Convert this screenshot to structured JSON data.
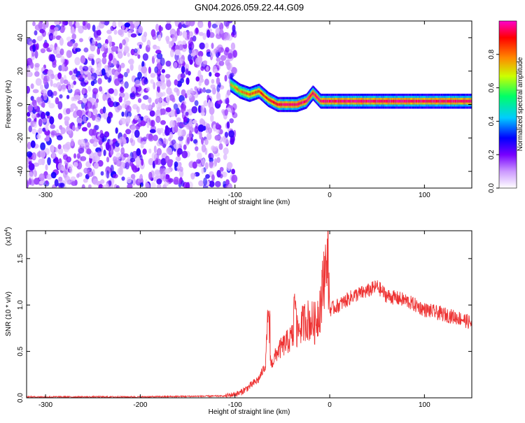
{
  "title": "GN04.2026.059.22.44.G09",
  "chart_data": [
    {
      "type": "heatmap",
      "xlabel": "Height of straight line (km)",
      "ylabel": "Frequency (Hz)",
      "xlim": [
        -320,
        150
      ],
      "ylim": [
        -50,
        50
      ],
      "xticks": [
        -300,
        -200,
        -100,
        0,
        100
      ],
      "yticks": [
        -40,
        -20,
        0,
        20,
        40
      ],
      "colorbar": {
        "label": "Normalized spectral amplitude",
        "range": [
          0.0,
          1.0
        ],
        "ticks": [
          "0.0",
          "0.2",
          "0.4",
          "0.6",
          "0.8"
        ],
        "colors": [
          "#ffffff",
          "#cc99ff",
          "#7700ff",
          "#0000ff",
          "#00ccff",
          "#00ff66",
          "#ccff00",
          "#ff8800",
          "#ff0000",
          "#ff00cc"
        ]
      },
      "noise_region_x": [
        -320,
        -100
      ],
      "ridge": {
        "x": [
          -105,
          -95,
          -85,
          -75,
          -65,
          -55,
          -45,
          -35,
          -25,
          -18,
          -10,
          0,
          20,
          50,
          80,
          110,
          150
        ],
        "y": [
          12,
          8,
          6,
          8,
          3,
          0,
          0,
          0,
          2,
          7,
          2,
          2,
          2,
          2,
          2,
          2,
          2
        ]
      }
    },
    {
      "type": "line",
      "xlabel": "Height of straight line (km)",
      "ylabel": "SNR (10 * v/v)",
      "multiplier_label": "(x10^4)",
      "multiplier_base": "(x10",
      "multiplier_exp": "4",
      "xlim": [
        -320,
        150
      ],
      "ylim": [
        0.0,
        1.8
      ],
      "xticks": [
        -300,
        -200,
        -100,
        0,
        100
      ],
      "yticks": [
        "0.0",
        "0.5",
        "1.0",
        "1.5"
      ],
      "color": "#ee3333",
      "series": [
        {
          "x": [
            -320,
            -200,
            -110,
            -95,
            -85,
            -75,
            -68,
            -65,
            -62,
            -55,
            -45,
            -35,
            -25,
            -15,
            -8,
            -3,
            0,
            10,
            25,
            40,
            50,
            60,
            80,
            100,
            120,
            140,
            150
          ],
          "values": [
            0.01,
            0.01,
            0.02,
            0.05,
            0.12,
            0.2,
            0.35,
            0.9,
            0.35,
            0.5,
            0.6,
            0.7,
            0.85,
            0.8,
            1.1,
            1.75,
            0.95,
            1.0,
            1.1,
            1.15,
            1.2,
            1.1,
            1.05,
            0.95,
            0.9,
            0.85,
            0.8
          ]
        }
      ]
    }
  ]
}
